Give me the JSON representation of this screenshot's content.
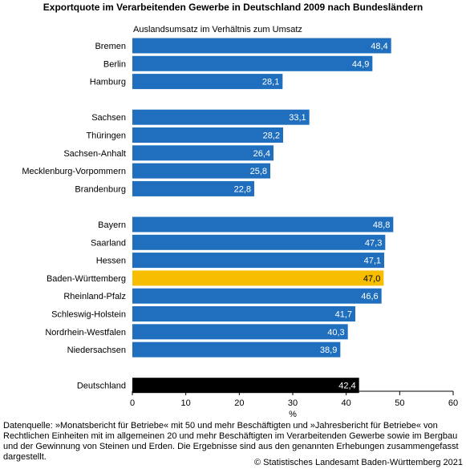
{
  "colors": {
    "default": "#1f6fbe",
    "highlight": "#f7bd00",
    "total": "#000000"
  },
  "chart_data": {
    "type": "bar",
    "orientation": "horizontal",
    "title": "Exportquote im Verarbeitenden Gewerbe in Deutschland 2009 nach Bundesländern",
    "subtitle": "Auslandsumsatz im Verhältnis zum Umsatz",
    "xlabel": "%",
    "xlim": [
      0,
      60
    ],
    "xticks": [
      "0",
      "10",
      "20",
      "30",
      "40",
      "50",
      "60"
    ],
    "grid": false,
    "groups": [
      [
        {
          "label": "Bremen",
          "value": 48.4,
          "value_label": "48,4",
          "kind": "default"
        },
        {
          "label": "Berlin",
          "value": 44.9,
          "value_label": "44,9",
          "kind": "default"
        },
        {
          "label": "Hamburg",
          "value": 28.1,
          "value_label": "28,1",
          "kind": "default"
        }
      ],
      [
        {
          "label": "Sachsen",
          "value": 33.1,
          "value_label": "33,1",
          "kind": "default"
        },
        {
          "label": "Thüringen",
          "value": 28.2,
          "value_label": "28,2",
          "kind": "default"
        },
        {
          "label": "Sachsen-Anhalt",
          "value": 26.4,
          "value_label": "26,4",
          "kind": "default"
        },
        {
          "label": "Mecklenburg-Vorpommern",
          "value": 25.8,
          "value_label": "25,8",
          "kind": "default"
        },
        {
          "label": "Brandenburg",
          "value": 22.8,
          "value_label": "22,8",
          "kind": "default"
        }
      ],
      [
        {
          "label": "Bayern",
          "value": 48.8,
          "value_label": "48,8",
          "kind": "default"
        },
        {
          "label": "Saarland",
          "value": 47.3,
          "value_label": "47,3",
          "kind": "default"
        },
        {
          "label": "Hessen",
          "value": 47.1,
          "value_label": "47,1",
          "kind": "default"
        },
        {
          "label": "Baden-Württemberg",
          "value": 47.0,
          "value_label": "47,0",
          "kind": "highlight"
        },
        {
          "label": "Rheinland-Pfalz",
          "value": 46.6,
          "value_label": "46,6",
          "kind": "default"
        },
        {
          "label": "Schleswig-Holstein",
          "value": 41.7,
          "value_label": "41,7",
          "kind": "default"
        },
        {
          "label": "Nordrhein-Westfalen",
          "value": 40.3,
          "value_label": "40,3",
          "kind": "default"
        },
        {
          "label": "Niedersachsen",
          "value": 38.9,
          "value_label": "38,9",
          "kind": "default"
        }
      ],
      [
        {
          "label": "Deutschland",
          "value": 42.4,
          "value_label": "42,4",
          "kind": "total"
        }
      ]
    ]
  },
  "footnote": "Datenquelle: »Monatsbericht für Betriebe« mit 50 und mehr Beschäftigten und »Jahresbericht für Betriebe« von Rechtlichen Einheiten mit im allgemeinen 20 und mehr Beschäftigten im Verarbeitenden Gewerbe sowie im Bergbau und der Gewinnung von Steinen und Erden. Die Ergebnisse sind aus den genannten Erhebungen zusammengefasst dargestellt.",
  "copyright": "© Statistisches Landesamt Baden-Württemberg 2021"
}
